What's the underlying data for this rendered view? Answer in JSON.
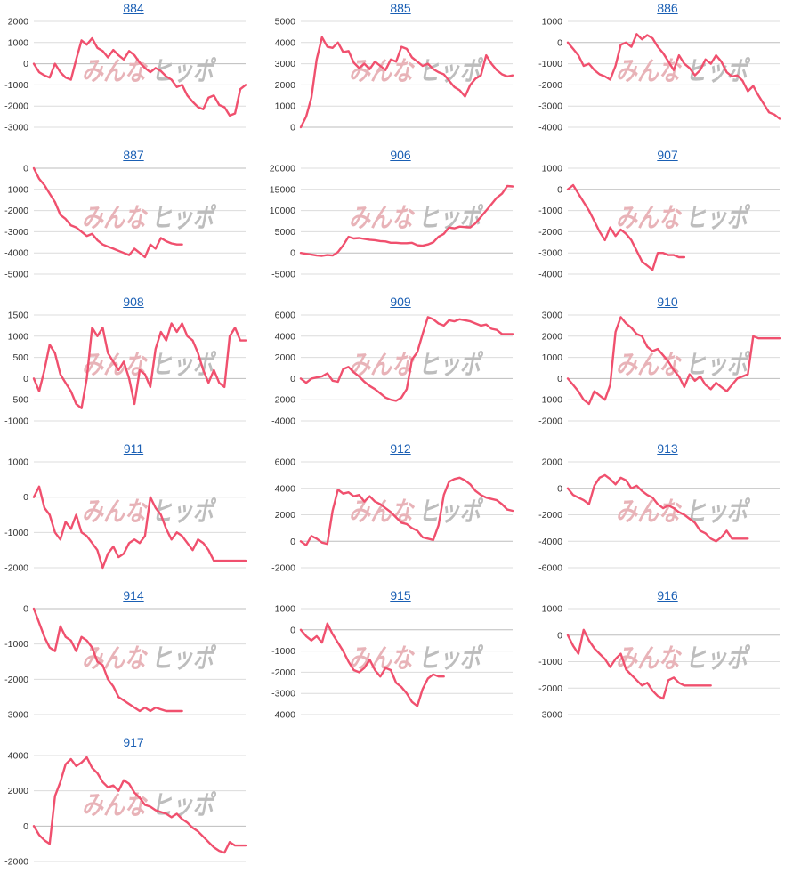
{
  "watermark": {
    "part1": "みんな",
    "part2": "ヒッポ"
  },
  "colors": {
    "line": "#f0506e",
    "title": "#1a5fb4"
  },
  "chart_data": [
    {
      "type": "line",
      "title": "884",
      "ylim": [
        -3000,
        2000
      ],
      "ticks": [
        2000,
        1000,
        0,
        -1000,
        -2000,
        -3000
      ],
      "x": [
        0,
        1,
        2,
        3,
        4,
        5,
        6,
        7,
        8,
        9,
        10,
        11,
        12,
        13,
        14,
        15,
        16,
        17,
        18,
        19,
        20,
        21,
        22,
        23,
        24,
        25,
        26,
        27,
        28,
        29,
        30,
        31,
        32,
        33,
        34,
        35,
        36,
        37,
        38,
        39,
        40
      ],
      "values": [
        0,
        -400,
        -550,
        -650,
        0,
        -400,
        -650,
        -750,
        200,
        1100,
        900,
        1200,
        750,
        600,
        300,
        650,
        400,
        200,
        600,
        400,
        50,
        -200,
        -400,
        -200,
        -350,
        -600,
        -750,
        -1100,
        -1000,
        -1500,
        -1800,
        -2050,
        -2150,
        -1600,
        -1500,
        -1950,
        -2050,
        -2450,
        -2350,
        -1200,
        -1000
      ]
    },
    {
      "type": "line",
      "title": "885",
      "ylim": [
        0,
        5000
      ],
      "ticks": [
        5000,
        4000,
        3000,
        2000,
        1000,
        0
      ],
      "x": [
        0,
        1,
        2,
        3,
        4,
        5,
        6,
        7,
        8,
        9,
        10,
        11,
        12,
        13,
        14,
        15,
        16,
        17,
        18,
        19,
        20,
        21,
        22,
        23,
        24,
        25,
        26,
        27,
        28,
        29,
        30,
        31,
        32,
        33,
        34,
        35,
        36,
        37,
        38,
        39,
        40
      ],
      "values": [
        0,
        500,
        1400,
        3200,
        4250,
        3800,
        3750,
        4000,
        3550,
        3600,
        3050,
        2800,
        3000,
        2750,
        3100,
        2900,
        2700,
        3200,
        3100,
        3800,
        3700,
        3300,
        3100,
        2900,
        3000,
        2750,
        2600,
        2500,
        2200,
        1900,
        1750,
        1450,
        2000,
        2300,
        2450,
        3400,
        3000,
        2700,
        2500,
        2400,
        2450
      ]
    },
    {
      "type": "line",
      "title": "886",
      "ylim": [
        -4000,
        1000
      ],
      "ticks": [
        1000,
        0,
        -1000,
        -2000,
        -3000,
        -4000
      ],
      "x": [
        0,
        1,
        2,
        3,
        4,
        5,
        6,
        7,
        8,
        9,
        10,
        11,
        12,
        13,
        14,
        15,
        16,
        17,
        18,
        19,
        20,
        21,
        22,
        23,
        24,
        25,
        26,
        27,
        28,
        29,
        30,
        31,
        32,
        33,
        34,
        35,
        36,
        37,
        38,
        39,
        40
      ],
      "values": [
        0,
        -300,
        -600,
        -1100,
        -1000,
        -1300,
        -1500,
        -1600,
        -1750,
        -1100,
        -100,
        0,
        -200,
        400,
        150,
        350,
        200,
        -200,
        -500,
        -900,
        -1300,
        -600,
        -1000,
        -1200,
        -1550,
        -1300,
        -800,
        -1000,
        -600,
        -900,
        -1400,
        -1600,
        -1550,
        -1800,
        -2300,
        -2050,
        -2500,
        -2900,
        -3300,
        -3400,
        -3600
      ]
    },
    {
      "type": "line",
      "title": "887",
      "ylim": [
        -5000,
        0
      ],
      "ticks": [
        0,
        -1000,
        -2000,
        -3000,
        -4000,
        -5000
      ],
      "x": [
        0,
        1,
        2,
        3,
        4,
        5,
        6,
        7,
        8,
        9,
        10,
        11,
        12,
        13,
        14,
        15,
        16,
        17,
        18,
        19,
        20,
        21,
        22,
        23,
        24,
        25,
        26,
        27,
        28
      ],
      "values": [
        0,
        -500,
        -800,
        -1200,
        -1600,
        -2200,
        -2400,
        -2700,
        -2800,
        -3000,
        -3200,
        -3100,
        -3400,
        -3600,
        -3700,
        -3800,
        -3900,
        -4000,
        -4100,
        -3800,
        -4000,
        -4200,
        -3600,
        -3800,
        -3300,
        -3450,
        -3550,
        -3600,
        -3600
      ]
    },
    {
      "type": "line",
      "title": "906",
      "ylim": [
        -5000,
        20000
      ],
      "ticks": [
        20000,
        15000,
        10000,
        5000,
        0,
        -5000
      ],
      "x": [
        0,
        1,
        2,
        3,
        4,
        5,
        6,
        7,
        8,
        9,
        10,
        11,
        12,
        13,
        14,
        15,
        16,
        17,
        18,
        19,
        20,
        21,
        22,
        23,
        24,
        25,
        26,
        27,
        28,
        29,
        30,
        31,
        32,
        33,
        34,
        35,
        36,
        37,
        38,
        39,
        40
      ],
      "values": [
        0,
        -200,
        -400,
        -600,
        -700,
        -500,
        -600,
        200,
        1800,
        3800,
        3400,
        3500,
        3300,
        3100,
        3000,
        2800,
        2700,
        2400,
        2400,
        2300,
        2300,
        2400,
        1800,
        1700,
        2000,
        2500,
        3800,
        4500,
        6000,
        5800,
        6200,
        6100,
        6000,
        7000,
        8500,
        10000,
        11500,
        13000,
        14000,
        15800,
        15700
      ]
    },
    {
      "type": "line",
      "title": "907",
      "ylim": [
        -4000,
        1000
      ],
      "ticks": [
        1000,
        0,
        -1000,
        -2000,
        -3000,
        -4000
      ],
      "x": [
        0,
        1,
        2,
        3,
        4,
        5,
        6,
        7,
        8,
        9,
        10,
        11,
        12,
        13,
        14,
        15,
        16,
        17,
        18,
        19,
        20,
        21,
        22
      ],
      "values": [
        0,
        200,
        -200,
        -600,
        -1000,
        -1500,
        -2000,
        -2400,
        -1800,
        -2200,
        -1900,
        -2100,
        -2400,
        -2900,
        -3400,
        -3600,
        -3800,
        -3000,
        -3000,
        -3100,
        -3100,
        -3200,
        -3200
      ]
    },
    {
      "type": "line",
      "title": "908",
      "ylim": [
        -1000,
        1500
      ],
      "ticks": [
        1500,
        1000,
        500,
        0,
        -500,
        -1000
      ],
      "x": [
        0,
        1,
        2,
        3,
        4,
        5,
        6,
        7,
        8,
        9,
        10,
        11,
        12,
        13,
        14,
        15,
        16,
        17,
        18,
        19,
        20,
        21,
        22,
        23,
        24,
        25,
        26,
        27,
        28,
        29,
        30,
        31,
        32,
        33,
        34,
        35,
        36,
        37,
        38,
        39,
        40
      ],
      "values": [
        0,
        -300,
        200,
        800,
        600,
        100,
        -100,
        -300,
        -600,
        -700,
        0,
        1200,
        1000,
        1200,
        600,
        400,
        200,
        400,
        0,
        -600,
        200,
        100,
        -200,
        700,
        1100,
        900,
        1300,
        1100,
        1300,
        1000,
        900,
        600,
        200,
        -100,
        200,
        -100,
        -200,
        1000,
        1200,
        900,
        900
      ]
    },
    {
      "type": "line",
      "title": "909",
      "ylim": [
        -4000,
        6000
      ],
      "ticks": [
        6000,
        4000,
        2000,
        0,
        -2000,
        -4000
      ],
      "x": [
        0,
        1,
        2,
        3,
        4,
        5,
        6,
        7,
        8,
        9,
        10,
        11,
        12,
        13,
        14,
        15,
        16,
        17,
        18,
        19,
        20,
        21,
        22,
        23,
        24,
        25,
        26,
        27,
        28,
        29,
        30,
        31,
        32,
        33,
        34,
        35,
        36,
        37,
        38,
        39,
        40
      ],
      "values": [
        0,
        -400,
        0,
        100,
        200,
        500,
        -200,
        -300,
        900,
        1100,
        600,
        200,
        -300,
        -700,
        -1000,
        -1400,
        -1800,
        -2000,
        -2100,
        -1800,
        -1000,
        1800,
        2500,
        4200,
        5800,
        5600,
        5200,
        5000,
        5500,
        5400,
        5600,
        5500,
        5400,
        5200,
        5000,
        5100,
        4700,
        4600,
        4200,
        4200,
        4200
      ]
    },
    {
      "type": "line",
      "title": "910",
      "ylim": [
        -2000,
        3000
      ],
      "ticks": [
        3000,
        2000,
        1000,
        0,
        -1000,
        -2000
      ],
      "x": [
        0,
        1,
        2,
        3,
        4,
        5,
        6,
        7,
        8,
        9,
        10,
        11,
        12,
        13,
        14,
        15,
        16,
        17,
        18,
        19,
        20,
        21,
        22,
        23,
        24,
        25,
        26,
        27,
        28,
        29,
        30,
        31,
        32,
        33,
        34,
        35,
        36,
        37,
        38,
        39,
        40
      ],
      "values": [
        0,
        -300,
        -600,
        -1000,
        -1200,
        -600,
        -800,
        -1000,
        -300,
        2200,
        2900,
        2600,
        2400,
        2100,
        2000,
        1500,
        1300,
        1400,
        1100,
        800,
        400,
        100,
        -400,
        200,
        -100,
        100,
        -300,
        -500,
        -200,
        -400,
        -600,
        -300,
        0,
        100,
        200,
        2000,
        1900,
        1900,
        1900,
        1900,
        1900
      ]
    },
    {
      "type": "line",
      "title": "911",
      "ylim": [
        -2000,
        1000
      ],
      "ticks": [
        1000,
        0,
        -1000,
        -2000
      ],
      "x": [
        0,
        1,
        2,
        3,
        4,
        5,
        6,
        7,
        8,
        9,
        10,
        11,
        12,
        13,
        14,
        15,
        16,
        17,
        18,
        19,
        20,
        21,
        22,
        23,
        24,
        25,
        26,
        27,
        28,
        29,
        30,
        31,
        32,
        33,
        34,
        35,
        36,
        37,
        38,
        39,
        40
      ],
      "values": [
        0,
        300,
        -300,
        -500,
        -1000,
        -1200,
        -700,
        -900,
        -500,
        -1000,
        -1100,
        -1300,
        -1500,
        -2000,
        -1600,
        -1400,
        -1700,
        -1600,
        -1300,
        -1200,
        -1300,
        -1100,
        0,
        -300,
        -500,
        -900,
        -1200,
        -1000,
        -1100,
        -1300,
        -1500,
        -1200,
        -1300,
        -1500,
        -1800,
        -1800,
        -1800,
        -1800,
        -1800,
        -1800,
        -1800
      ]
    },
    {
      "type": "line",
      "title": "912",
      "ylim": [
        -2000,
        6000
      ],
      "ticks": [
        6000,
        4000,
        2000,
        0,
        -2000
      ],
      "x": [
        0,
        1,
        2,
        3,
        4,
        5,
        6,
        7,
        8,
        9,
        10,
        11,
        12,
        13,
        14,
        15,
        16,
        17,
        18,
        19,
        20,
        21,
        22,
        23,
        24,
        25,
        26,
        27,
        28,
        29,
        30,
        31,
        32,
        33,
        34,
        35,
        36,
        37,
        38,
        39,
        40
      ],
      "values": [
        0,
        -300,
        400,
        200,
        -100,
        -200,
        2300,
        3900,
        3600,
        3700,
        3400,
        3500,
        3000,
        3400,
        3000,
        2800,
        2500,
        2200,
        1800,
        1400,
        1300,
        1000,
        800,
        300,
        200,
        100,
        1200,
        3500,
        4500,
        4700,
        4800,
        4600,
        4300,
        3800,
        3500,
        3300,
        3200,
        3100,
        2800,
        2400,
        2300
      ]
    },
    {
      "type": "line",
      "title": "913",
      "ylim": [
        -6000,
        2000
      ],
      "ticks": [
        2000,
        0,
        -2000,
        -4000,
        -6000
      ],
      "x": [
        0,
        1,
        2,
        3,
        4,
        5,
        6,
        7,
        8,
        9,
        10,
        11,
        12,
        13,
        14,
        15,
        16,
        17,
        18,
        19,
        20,
        21,
        22,
        23,
        24,
        25,
        26,
        27,
        28,
        29,
        30,
        31,
        32,
        33,
        34
      ],
      "values": [
        0,
        -500,
        -700,
        -900,
        -1200,
        200,
        800,
        1000,
        700,
        300,
        800,
        600,
        0,
        200,
        -200,
        -500,
        -700,
        -1200,
        -1500,
        -1300,
        -1500,
        -1800,
        -2000,
        -2300,
        -2600,
        -3200,
        -3400,
        -3800,
        -4000,
        -3700,
        -3200,
        -3800,
        -3800,
        -3800,
        -3800
      ]
    },
    {
      "type": "line",
      "title": "914",
      "ylim": [
        -3000,
        0
      ],
      "ticks": [
        0,
        -1000,
        -2000,
        -3000
      ],
      "x": [
        0,
        1,
        2,
        3,
        4,
        5,
        6,
        7,
        8,
        9,
        10,
        11,
        12,
        13,
        14,
        15,
        16,
        17,
        18,
        19,
        20,
        21,
        22,
        23,
        24,
        25,
        26,
        27,
        28
      ],
      "values": [
        0,
        -400,
        -800,
        -1100,
        -1200,
        -500,
        -800,
        -900,
        -1200,
        -800,
        -900,
        -1100,
        -1500,
        -1600,
        -2000,
        -2200,
        -2500,
        -2600,
        -2700,
        -2800,
        -2900,
        -2800,
        -2900,
        -2800,
        -2850,
        -2900,
        -2900,
        -2900,
        -2900
      ]
    },
    {
      "type": "line",
      "title": "915",
      "ylim": [
        -4000,
        1000
      ],
      "ticks": [
        1000,
        0,
        -1000,
        -2000,
        -3000,
        -4000
      ],
      "x": [
        0,
        1,
        2,
        3,
        4,
        5,
        6,
        7,
        8,
        9,
        10,
        11,
        12,
        13,
        14,
        15,
        16,
        17,
        18,
        19,
        20,
        21,
        22,
        23,
        24,
        25,
        26,
        27
      ],
      "values": [
        0,
        -300,
        -500,
        -300,
        -600,
        300,
        -200,
        -600,
        -1000,
        -1500,
        -1900,
        -2000,
        -1800,
        -1400,
        -1900,
        -2200,
        -1800,
        -1900,
        -2500,
        -2700,
        -3000,
        -3400,
        -3600,
        -2800,
        -2300,
        -2100,
        -2200,
        -2200
      ]
    },
    {
      "type": "line",
      "title": "916",
      "ylim": [
        -3000,
        1000
      ],
      "ticks": [
        1000,
        0,
        -1000,
        -2000,
        -3000
      ],
      "x": [
        0,
        1,
        2,
        3,
        4,
        5,
        6,
        7,
        8,
        9,
        10,
        11,
        12,
        13,
        14,
        15,
        16,
        17,
        18,
        19,
        20,
        21,
        22,
        23,
        24,
        25,
        26,
        27
      ],
      "values": [
        0,
        -400,
        -700,
        200,
        -200,
        -500,
        -700,
        -900,
        -1200,
        -900,
        -700,
        -1300,
        -1500,
        -1700,
        -1900,
        -1800,
        -2100,
        -2300,
        -2400,
        -1700,
        -1600,
        -1800,
        -1900,
        -1900,
        -1900,
        -1900,
        -1900,
        -1900
      ]
    },
    {
      "type": "line",
      "title": "917",
      "ylim": [
        -2000,
        4000
      ],
      "ticks": [
        4000,
        2000,
        0,
        -2000
      ],
      "x": [
        0,
        1,
        2,
        3,
        4,
        5,
        6,
        7,
        8,
        9,
        10,
        11,
        12,
        13,
        14,
        15,
        16,
        17,
        18,
        19,
        20,
        21,
        22,
        23,
        24,
        25,
        26,
        27,
        28,
        29,
        30,
        31,
        32,
        33,
        34,
        35,
        36,
        37,
        38,
        39,
        40
      ],
      "values": [
        0,
        -500,
        -800,
        -1000,
        1700,
        2500,
        3500,
        3800,
        3400,
        3600,
        3900,
        3300,
        3000,
        2500,
        2200,
        2300,
        2000,
        2600,
        2400,
        1900,
        1600,
        1200,
        1100,
        900,
        800,
        700,
        500,
        700,
        400,
        200,
        -100,
        -300,
        -600,
        -900,
        -1200,
        -1400,
        -1500,
        -900,
        -1100,
        -1100,
        -1100
      ]
    }
  ]
}
